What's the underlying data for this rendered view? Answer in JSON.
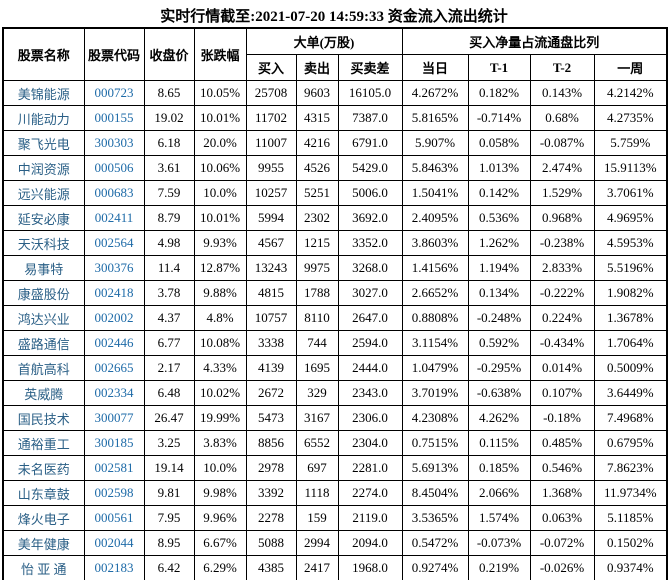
{
  "colors": {
    "stock_name": "#2a5f86",
    "stock_code": "#1e6ba8",
    "text": "#000000",
    "grid": "#000000",
    "background": "#ffffff"
  },
  "chart_data": {
    "type": "table",
    "title": "实时行情截至:2021-07-20 14:59:33 资金流入流出统计",
    "column_groups": {
      "big_orders": "大单(万股)",
      "net_buy_ratio": "买入净量占流通盘比列"
    },
    "columns": [
      "股票名称",
      "股票代码",
      "收盘价",
      "张跌幅",
      "买入",
      "卖出",
      "买卖差",
      "当日",
      "T-1",
      "T-2",
      "一周"
    ],
    "rows": [
      [
        "美锦能源",
        "000723",
        "8.65",
        "10.05%",
        "25708",
        "9603",
        "16105.0",
        "4.2672%",
        "0.182%",
        "0.143%",
        "4.2142%"
      ],
      [
        "川能动力",
        "000155",
        "19.02",
        "10.01%",
        "11702",
        "4315",
        "7387.0",
        "5.8165%",
        "-0.714%",
        "0.68%",
        "4.2735%"
      ],
      [
        "聚飞光电",
        "300303",
        "6.18",
        "20.0%",
        "11007",
        "4216",
        "6791.0",
        "5.907%",
        "0.058%",
        "-0.087%",
        "5.759%"
      ],
      [
        "中润资源",
        "000506",
        "3.61",
        "10.06%",
        "9955",
        "4526",
        "5429.0",
        "5.8463%",
        "1.013%",
        "2.474%",
        "15.9113%"
      ],
      [
        "远兴能源",
        "000683",
        "7.59",
        "10.0%",
        "10257",
        "5251",
        "5006.0",
        "1.5041%",
        "0.142%",
        "1.529%",
        "3.7061%"
      ],
      [
        "延安必康",
        "002411",
        "8.79",
        "10.01%",
        "5994",
        "2302",
        "3692.0",
        "2.4095%",
        "0.536%",
        "0.968%",
        "4.9695%"
      ],
      [
        "天沃科技",
        "002564",
        "4.98",
        "9.93%",
        "4567",
        "1215",
        "3352.0",
        "3.8603%",
        "1.262%",
        "-0.238%",
        "4.5953%"
      ],
      [
        "易事特",
        "300376",
        "11.4",
        "12.87%",
        "13243",
        "9975",
        "3268.0",
        "1.4156%",
        "1.194%",
        "2.833%",
        "5.5196%"
      ],
      [
        "康盛股份",
        "002418",
        "3.78",
        "9.88%",
        "4815",
        "1788",
        "3027.0",
        "2.6652%",
        "0.134%",
        "-0.222%",
        "1.9082%"
      ],
      [
        "鸿达兴业",
        "002002",
        "4.37",
        "4.8%",
        "10757",
        "8110",
        "2647.0",
        "0.8808%",
        "-0.248%",
        "0.224%",
        "1.3678%"
      ],
      [
        "盛路通信",
        "002446",
        "6.77",
        "10.08%",
        "3338",
        "744",
        "2594.0",
        "3.1154%",
        "0.592%",
        "-0.434%",
        "1.7064%"
      ],
      [
        "首航高科",
        "002665",
        "2.17",
        "4.33%",
        "4139",
        "1695",
        "2444.0",
        "1.0479%",
        "-0.295%",
        "0.014%",
        "0.5009%"
      ],
      [
        "英威腾",
        "002334",
        "6.48",
        "10.02%",
        "2672",
        "329",
        "2343.0",
        "3.7019%",
        "-0.638%",
        "0.107%",
        "3.6449%"
      ],
      [
        "国民技术",
        "300077",
        "26.47",
        "19.99%",
        "5473",
        "3167",
        "2306.0",
        "4.2308%",
        "4.262%",
        "-0.18%",
        "7.4968%"
      ],
      [
        "通裕重工",
        "300185",
        "3.25",
        "3.83%",
        "8856",
        "6552",
        "2304.0",
        "0.7515%",
        "0.115%",
        "0.485%",
        "0.6795%"
      ],
      [
        "未名医药",
        "002581",
        "19.14",
        "10.0%",
        "2978",
        "697",
        "2281.0",
        "5.6913%",
        "0.185%",
        "0.546%",
        "7.8623%"
      ],
      [
        "山东章鼓",
        "002598",
        "9.81",
        "9.98%",
        "3392",
        "1118",
        "2274.0",
        "8.4504%",
        "2.066%",
        "1.368%",
        "11.9734%"
      ],
      [
        "烽火电子",
        "000561",
        "7.95",
        "9.96%",
        "2278",
        "159",
        "2119.0",
        "3.5365%",
        "1.574%",
        "0.063%",
        "5.1185%"
      ],
      [
        "美年健康",
        "002044",
        "8.95",
        "6.67%",
        "5088",
        "2994",
        "2094.0",
        "0.5472%",
        "-0.073%",
        "-0.072%",
        "0.1502%"
      ],
      [
        "怡 亚 通",
        "002183",
        "6.42",
        "6.29%",
        "4385",
        "2417",
        "1968.0",
        "0.9274%",
        "0.219%",
        "-0.026%",
        "0.9374%"
      ]
    ]
  }
}
